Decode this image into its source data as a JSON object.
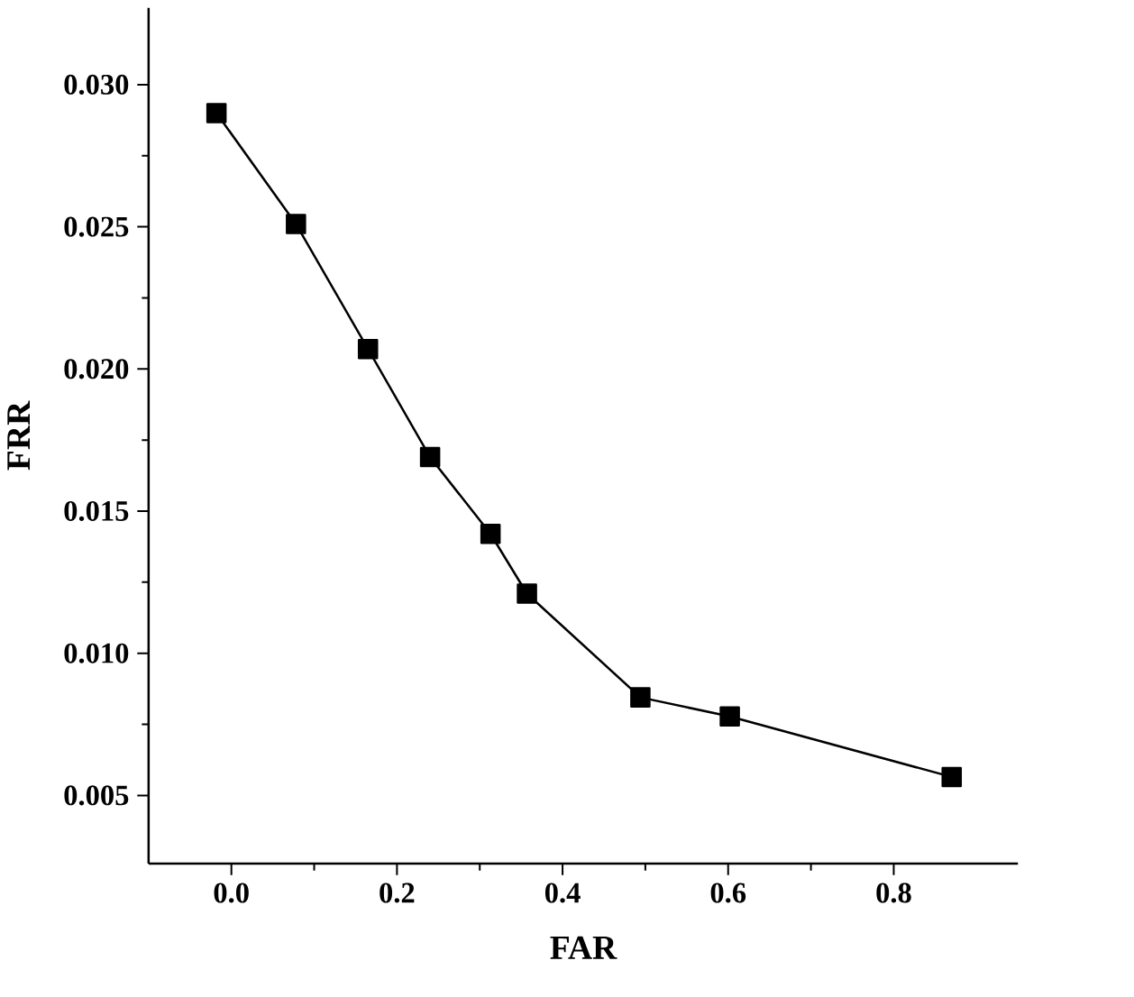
{
  "chart_data": {
    "type": "line",
    "xlabel": "FAR",
    "ylabel": "FRR",
    "xlim": [
      -0.1,
      0.95
    ],
    "ylim": [
      0.0026,
      0.0327
    ],
    "xticks": [
      {
        "value": 0,
        "label": "0.0"
      },
      {
        "value": 0.2,
        "label": "0.2"
      },
      {
        "value": 0.4,
        "label": "0.4"
      },
      {
        "value": 0.6,
        "label": "0.6"
      },
      {
        "value": 0.8,
        "label": "0.8"
      }
    ],
    "yticks": [
      {
        "value": 0.005,
        "label": "0.005"
      },
      {
        "value": 0.01,
        "label": "0.010"
      },
      {
        "value": 0.015,
        "label": "0.015"
      },
      {
        "value": 0.02,
        "label": "0.020"
      },
      {
        "value": 0.025,
        "label": "0.025"
      },
      {
        "value": 0.03,
        "label": "0.030"
      }
    ],
    "x": [
      -0.018,
      0.078,
      0.165,
      0.24,
      0.313,
      0.357,
      0.494,
      0.602,
      0.87
    ],
    "series": [
      {
        "color": "#000000",
        "values": [
          0.029,
          0.0251,
          0.0207,
          0.0169,
          0.0142,
          0.0121,
          0.00845,
          0.00778,
          0.00565
        ]
      }
    ],
    "marker": "square",
    "line_style": "solid",
    "grid": false
  }
}
